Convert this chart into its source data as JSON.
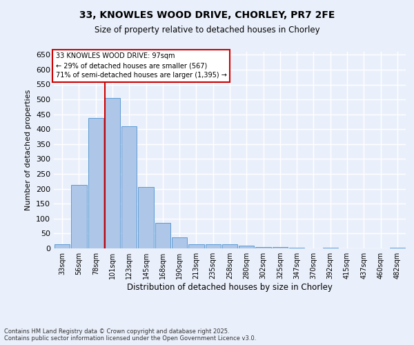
{
  "title_line1": "33, KNOWLES WOOD DRIVE, CHORLEY, PR7 2FE",
  "title_line2": "Size of property relative to detached houses in Chorley",
  "xlabel": "Distribution of detached houses by size in Chorley",
  "ylabel": "Number of detached properties",
  "footer_line1": "Contains HM Land Registry data © Crown copyright and database right 2025.",
  "footer_line2": "Contains public sector information licensed under the Open Government Licence v3.0.",
  "categories": [
    "33sqm",
    "56sqm",
    "78sqm",
    "101sqm",
    "123sqm",
    "145sqm",
    "168sqm",
    "190sqm",
    "213sqm",
    "235sqm",
    "258sqm",
    "280sqm",
    "302sqm",
    "325sqm",
    "347sqm",
    "370sqm",
    "392sqm",
    "415sqm",
    "437sqm",
    "460sqm",
    "482sqm"
  ],
  "values": [
    15,
    213,
    438,
    505,
    410,
    205,
    86,
    38,
    15,
    15,
    15,
    10,
    5,
    4,
    2,
    1,
    3,
    0,
    0,
    0,
    3
  ],
  "bar_color": "#aec6e8",
  "bar_edge_color": "#5b9bd5",
  "background_color": "#eaf0fb",
  "grid_color": "#ffffff",
  "property_line_label": "33 KNOWLES WOOD DRIVE: 97sqm",
  "annotation_line2": "← 29% of detached houses are smaller (567)",
  "annotation_line3": "71% of semi-detached houses are larger (1,395) →",
  "annotation_box_color": "#ffffff",
  "annotation_box_edge_color": "#cc0000",
  "annotation_text_color": "#000000",
  "red_line_color": "#cc0000",
  "ylim": [
    0,
    660
  ],
  "yticks": [
    0,
    50,
    100,
    150,
    200,
    250,
    300,
    350,
    400,
    450,
    500,
    550,
    600,
    650
  ]
}
